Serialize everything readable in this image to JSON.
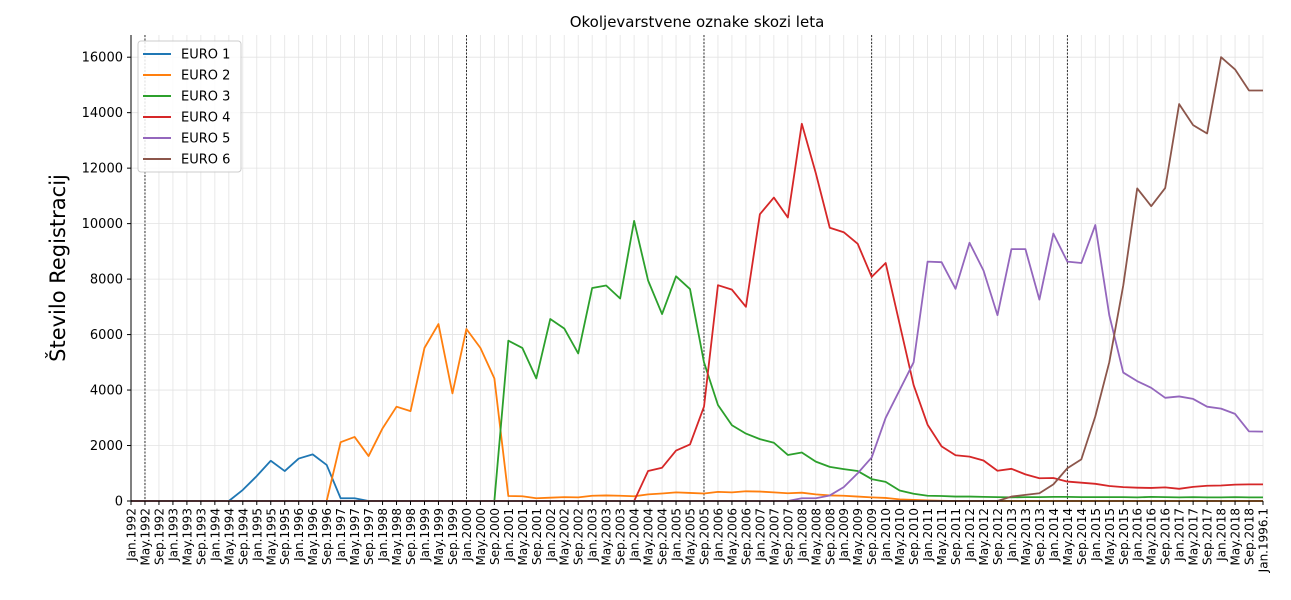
{
  "chart_data": {
    "type": "line",
    "title": "Okoljevarstvene oznake skozi leta",
    "xlabel": "",
    "ylabel": "Število Registracij",
    "ylim": [
      0,
      16800
    ],
    "y_ticks": [
      0,
      2000,
      4000,
      6000,
      8000,
      10000,
      12000,
      14000,
      16000
    ],
    "grid": true,
    "legend_position": "top-left",
    "x_tick_labels": [
      "Jan.1992",
      "May.1992",
      "Sep.1992",
      "Jan.1993",
      "May.1993",
      "Sep.1993",
      "Jan.1994",
      "May.1994",
      "Sep.1994",
      "Jan.1995",
      "May.1995",
      "Sep.1995",
      "Jan.1996",
      "May.1996",
      "Sep.1996",
      "Jan.1997",
      "May.1997",
      "Sep.1997",
      "Jan.1998",
      "May.1998",
      "Sep.1998",
      "Jan.1999",
      "May.1999",
      "Sep.1999",
      "Jan.2000",
      "May.2000",
      "Sep.2000",
      "Jan.2001",
      "May.2001",
      "Sep.2001",
      "Jan.2002",
      "May.2002",
      "Sep.2002",
      "Jan.2003",
      "May.2003",
      "Sep.2003",
      "Jan.2004",
      "May.2004",
      "Sep.2004",
      "Jan.2005",
      "May.2005",
      "Sep.2005",
      "Jan.2006",
      "May.2006",
      "Sep.2006",
      "Jan.2007",
      "May.2007",
      "Sep.2007",
      "Jan.2008",
      "May.2008",
      "Sep.2008",
      "Jan.2009",
      "May.2009",
      "Sep.2009",
      "Jan.2010",
      "May.2010",
      "Sep.2010",
      "Jan.2011",
      "May.2011",
      "Sep.2011",
      "Jan.2012",
      "May.2012",
      "Sep.2012",
      "Jan.2013",
      "May.2013",
      "Sep.2013",
      "Jan.2014",
      "May.2014",
      "Sep.2014",
      "Jan.2015",
      "May.2015",
      "Sep.2015",
      "Jan.2016",
      "May.2016",
      "Sep.2016",
      "Jan.2017",
      "May.2017",
      "Sep.2017",
      "Jan.2018",
      "May.2018",
      "Sep.2018",
      "Jan.1996.1"
    ],
    "vertical_markers": [
      "May.1992",
      "Jan.2000",
      "Sep.2005",
      "Sep.2009",
      "May.2014"
    ],
    "series": [
      {
        "name": "EURO 1",
        "color": "#1f77b4",
        "values": [
          0,
          0,
          0,
          0,
          0,
          0,
          0,
          0,
          400,
          900,
          1450,
          1080,
          1530,
          1680,
          1300,
          100,
          100,
          0,
          0,
          0,
          0,
          0,
          0,
          0,
          0,
          0,
          0,
          0,
          0,
          0,
          0,
          0,
          0,
          0,
          0,
          0,
          0,
          0,
          0,
          0,
          0,
          0,
          0,
          0,
          0,
          0,
          0,
          0,
          0,
          0,
          0,
          0,
          0,
          0,
          0,
          0,
          0,
          0,
          0,
          0,
          0,
          0,
          0,
          0,
          0,
          0,
          0,
          0,
          0,
          0,
          0,
          0,
          0,
          0,
          0,
          0,
          0,
          0,
          0,
          0,
          0,
          0
        ]
      },
      {
        "name": "EURO 2",
        "color": "#ff7f0e",
        "values": [
          0,
          0,
          0,
          0,
          0,
          0,
          0,
          0,
          0,
          0,
          0,
          0,
          0,
          0,
          0,
          2120,
          2310,
          1620,
          2620,
          3400,
          3240,
          5520,
          6380,
          3880,
          6200,
          5520,
          4420,
          180,
          170,
          100,
          120,
          140,
          130,
          190,
          200,
          190,
          170,
          240,
          270,
          310,
          290,
          270,
          330,
          310,
          350,
          340,
          310,
          280,
          300,
          240,
          200,
          190,
          160,
          130,
          110,
          60,
          40,
          20,
          10,
          0,
          0,
          0,
          0,
          0,
          0,
          0,
          0,
          0,
          0,
          0,
          0,
          0,
          0,
          0,
          0,
          0,
          0,
          0,
          0,
          0,
          0,
          0
        ]
      },
      {
        "name": "EURO 3",
        "color": "#2ca02c",
        "values": [
          0,
          0,
          0,
          0,
          0,
          0,
          0,
          0,
          0,
          0,
          0,
          0,
          0,
          0,
          0,
          0,
          0,
          0,
          0,
          0,
          0,
          0,
          0,
          0,
          0,
          0,
          0,
          5780,
          5520,
          4420,
          6560,
          6220,
          5320,
          7680,
          7770,
          7300,
          10100,
          7950,
          6740,
          8100,
          7640,
          5000,
          3460,
          2730,
          2430,
          2230,
          2100,
          1660,
          1750,
          1420,
          1230,
          1150,
          1080,
          790,
          690,
          380,
          260,
          190,
          180,
          160,
          160,
          150,
          140,
          130,
          140,
          140,
          150,
          150,
          140,
          140,
          140,
          140,
          130,
          150,
          140,
          130,
          140,
          130,
          130,
          140,
          130,
          130
        ]
      },
      {
        "name": "EURO 4",
        "color": "#d62728",
        "values": [
          0,
          0,
          0,
          0,
          0,
          0,
          0,
          0,
          0,
          0,
          0,
          0,
          0,
          0,
          0,
          0,
          0,
          0,
          0,
          0,
          0,
          0,
          0,
          0,
          0,
          0,
          0,
          0,
          0,
          0,
          0,
          0,
          0,
          0,
          0,
          0,
          0,
          1080,
          1200,
          1820,
          2040,
          3400,
          7780,
          7620,
          7000,
          10340,
          10940,
          10220,
          13600,
          11820,
          9850,
          9690,
          9270,
          8080,
          8580,
          6380,
          4180,
          2750,
          1970,
          1650,
          1600,
          1460,
          1090,
          1160,
          960,
          820,
          830,
          700,
          660,
          620,
          540,
          500,
          480,
          470,
          490,
          440,
          510,
          550,
          560,
          590,
          600,
          600
        ]
      },
      {
        "name": "EURO 5",
        "color": "#9467bd",
        "values": [
          0,
          0,
          0,
          0,
          0,
          0,
          0,
          0,
          0,
          0,
          0,
          0,
          0,
          0,
          0,
          0,
          0,
          0,
          0,
          0,
          0,
          0,
          0,
          0,
          0,
          0,
          0,
          0,
          0,
          0,
          0,
          0,
          0,
          0,
          0,
          0,
          0,
          0,
          0,
          0,
          0,
          0,
          0,
          0,
          0,
          0,
          0,
          0,
          100,
          100,
          200,
          500,
          1000,
          1570,
          3000,
          4000,
          5000,
          8630,
          8610,
          7650,
          9310,
          8310,
          6700,
          9080,
          9080,
          7260,
          9640,
          8630,
          8580,
          9950,
          6700,
          4630,
          4320,
          4080,
          3720,
          3770,
          3680,
          3400,
          3330,
          3140,
          2510,
          2500
        ]
      },
      {
        "name": "EURO 6",
        "color": "#8c564b",
        "values": [
          0,
          0,
          0,
          0,
          0,
          0,
          0,
          0,
          0,
          0,
          0,
          0,
          0,
          0,
          0,
          0,
          0,
          0,
          0,
          0,
          0,
          0,
          0,
          0,
          0,
          0,
          0,
          0,
          0,
          0,
          0,
          0,
          0,
          0,
          0,
          0,
          0,
          0,
          0,
          0,
          0,
          0,
          0,
          0,
          0,
          0,
          0,
          0,
          0,
          0,
          0,
          0,
          0,
          0,
          0,
          0,
          0,
          0,
          0,
          0,
          0,
          0,
          0,
          160,
          220,
          280,
          600,
          1180,
          1500,
          3050,
          5000,
          7770,
          11270,
          10630,
          11280,
          14310,
          13550,
          13250,
          16000,
          15560,
          14800,
          14800
        ]
      }
    ]
  }
}
